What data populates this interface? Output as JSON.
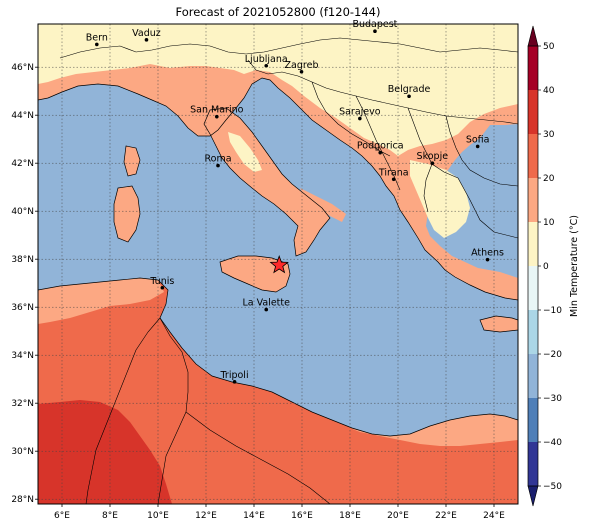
{
  "title": "Forecast of 2021052800 (f120-144)",
  "map": {
    "lon_range": [
      5,
      25
    ],
    "lat_range": [
      27.8,
      47.8
    ],
    "x_ticks": [
      {
        "value": 6,
        "label": "6°E"
      },
      {
        "value": 8,
        "label": "8°E"
      },
      {
        "value": 10,
        "label": "10°E"
      },
      {
        "value": 12,
        "label": "12°E"
      },
      {
        "value": 14,
        "label": "14°E"
      },
      {
        "value": 16,
        "label": "16°E"
      },
      {
        "value": 18,
        "label": "18°E"
      },
      {
        "value": 20,
        "label": "20°E"
      },
      {
        "value": 22,
        "label": "22°E"
      },
      {
        "value": 24,
        "label": "24°E"
      }
    ],
    "y_ticks": [
      {
        "value": 28,
        "label": "28°N"
      },
      {
        "value": 30,
        "label": "30°N"
      },
      {
        "value": 32,
        "label": "32°N"
      },
      {
        "value": 34,
        "label": "34°N"
      },
      {
        "value": 36,
        "label": "36°N"
      },
      {
        "value": 38,
        "label": "38°N"
      },
      {
        "value": 40,
        "label": "40°N"
      },
      {
        "value": 42,
        "label": "42°N"
      },
      {
        "value": 44,
        "label": "44°N"
      },
      {
        "value": 46,
        "label": "46°N"
      }
    ],
    "grid": true,
    "colors": {
      "sea": "#91b4d8",
      "land_10_20": "#fca883",
      "land_20_30": "#ef6a4b",
      "land_30_40": "#d7342a",
      "land_0_10": "#fdf4c5",
      "border": "#000000",
      "marker": "#ff2a2a"
    },
    "cities": [
      {
        "name": "Bern",
        "lon": 7.45,
        "lat": 46.95
      },
      {
        "name": "Vaduz",
        "lon": 9.52,
        "lat": 47.14
      },
      {
        "name": "Budapest",
        "lon": 19.04,
        "lat": 47.5
      },
      {
        "name": "Ljubljana",
        "lon": 14.51,
        "lat": 46.06
      },
      {
        "name": "Zagreb",
        "lon": 15.98,
        "lat": 45.81
      },
      {
        "name": "Belgrade",
        "lon": 20.46,
        "lat": 44.79
      },
      {
        "name": "San Marino",
        "lon": 12.45,
        "lat": 43.94
      },
      {
        "name": "Sarajevo",
        "lon": 18.41,
        "lat": 43.86
      },
      {
        "name": "Sofia",
        "lon": 23.32,
        "lat": 42.7
      },
      {
        "name": "Podgorica",
        "lon": 19.26,
        "lat": 42.44
      },
      {
        "name": "Skopje",
        "lon": 21.43,
        "lat": 42.0
      },
      {
        "name": "Roma",
        "lon": 12.5,
        "lat": 41.9
      },
      {
        "name": "Tirana",
        "lon": 19.82,
        "lat": 41.33
      },
      {
        "name": "Athens",
        "lon": 23.73,
        "lat": 37.98
      },
      {
        "name": "Tunis",
        "lon": 10.18,
        "lat": 36.81
      },
      {
        "name": "La Valette",
        "lon": 14.51,
        "lat": 35.9
      },
      {
        "name": "Tripoli",
        "lon": 13.19,
        "lat": 32.89
      }
    ],
    "marker": {
      "lon": 15.05,
      "lat": 37.75
    }
  },
  "colorbar": {
    "label": "Min Temperature (°C)",
    "min": -50,
    "max": 50,
    "ticks": [
      {
        "value": 50,
        "label": "50"
      },
      {
        "value": 40,
        "label": "40"
      },
      {
        "value": 30,
        "label": "30"
      },
      {
        "value": 20,
        "label": "20"
      },
      {
        "value": 10,
        "label": "10"
      },
      {
        "value": 0,
        "label": "0"
      },
      {
        "value": -10,
        "label": "−10"
      },
      {
        "value": -20,
        "label": "−20"
      },
      {
        "value": -30,
        "label": "−30"
      },
      {
        "value": -40,
        "label": "−40"
      },
      {
        "value": -50,
        "label": "−50"
      }
    ],
    "bins": [
      {
        "from": 40,
        "to": 50,
        "color": "#a50026"
      },
      {
        "from": 30,
        "to": 40,
        "color": "#d7342a"
      },
      {
        "from": 20,
        "to": 30,
        "color": "#ef6a4b"
      },
      {
        "from": 10,
        "to": 20,
        "color": "#fca883"
      },
      {
        "from": 0,
        "to": 10,
        "color": "#fdf4c5"
      },
      {
        "from": -10,
        "to": 0,
        "color": "#e9f6f6"
      },
      {
        "from": -20,
        "to": -10,
        "color": "#abd6e6"
      },
      {
        "from": -30,
        "to": -20,
        "color": "#91b4d8"
      },
      {
        "from": -40,
        "to": -30,
        "color": "#4f7fb8"
      },
      {
        "from": -50,
        "to": -40,
        "color": "#313695"
      }
    ],
    "over_color": "#67001f",
    "under_color": "#1a1f6e"
  }
}
